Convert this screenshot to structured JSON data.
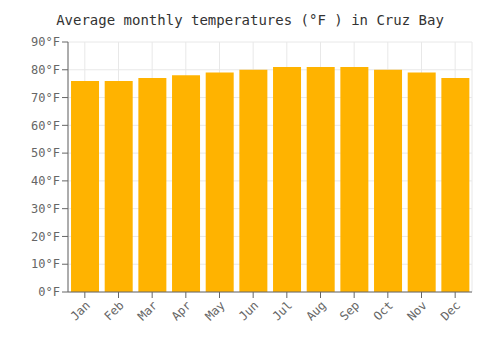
{
  "chart_data": {
    "type": "bar",
    "title": "Average monthly temperatures (°F ) in Cruz Bay",
    "categories": [
      "Jan",
      "Feb",
      "Mar",
      "Apr",
      "May",
      "Jun",
      "Jul",
      "Aug",
      "Sep",
      "Oct",
      "Nov",
      "Dec"
    ],
    "values": [
      76,
      76,
      77,
      78,
      79,
      80,
      81,
      81,
      81,
      80,
      79,
      77
    ],
    "color": "#FFB300",
    "ylim": [
      0,
      90
    ],
    "yticks": [
      {
        "value": 0,
        "label": "0°F"
      },
      {
        "value": 10,
        "label": "10°F"
      },
      {
        "value": 20,
        "label": "20°F"
      },
      {
        "value": 30,
        "label": "30°F"
      },
      {
        "value": 40,
        "label": "40°F"
      },
      {
        "value": 50,
        "label": "50°F"
      },
      {
        "value": 60,
        "label": "60°F"
      },
      {
        "value": 70,
        "label": "70°F"
      },
      {
        "value": 80,
        "label": "80°F"
      },
      {
        "value": 90,
        "label": "90°F"
      }
    ],
    "grid": true
  }
}
